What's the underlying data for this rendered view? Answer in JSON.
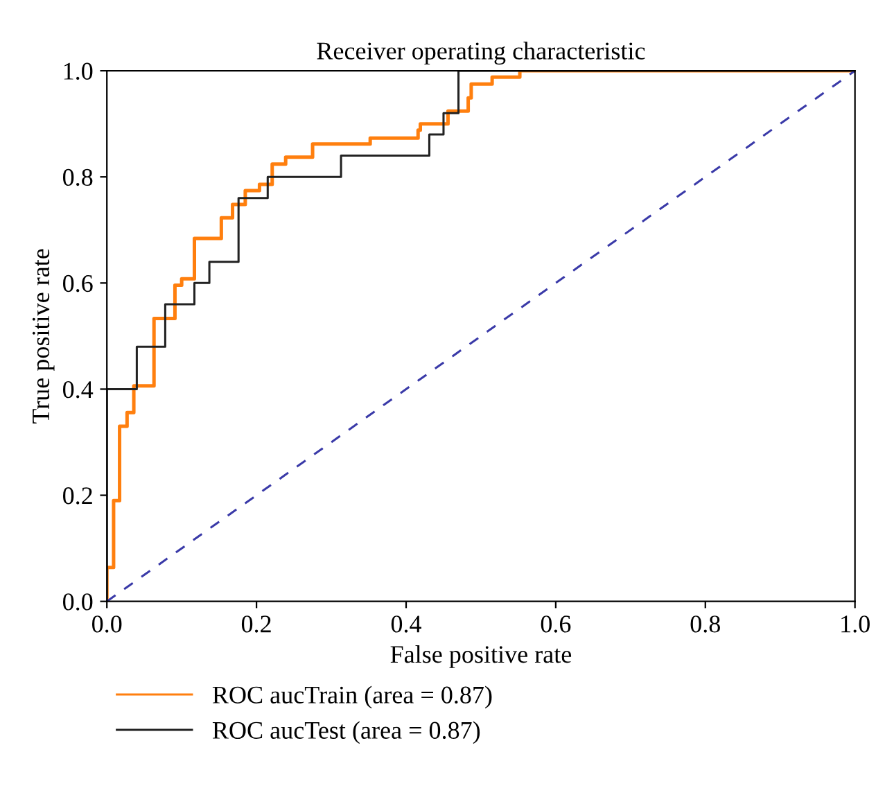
{
  "chart_data": {
    "type": "line",
    "title": "Receiver operating characteristic",
    "xlabel": "False positive rate",
    "ylabel": "True positive rate",
    "series": [
      {
        "name": "ROC aucTrain (area = 0.87)",
        "color": "#ff7f0e",
        "x": [
          0,
          0,
          0.009,
          0.009,
          0.017,
          0.017,
          0.027,
          0.027,
          0.036,
          0.036,
          0.063,
          0.063,
          0.091,
          0.091,
          0.1,
          0.1,
          0.117,
          0.117,
          0.153,
          0.153,
          0.168,
          0.168,
          0.185,
          0.185,
          0.204,
          0.204,
          0.221,
          0.221,
          0.239,
          0.239,
          0.275,
          0.275,
          0.352,
          0.352,
          0.416,
          0.416,
          0.419,
          0.419,
          0.456,
          0.456,
          0.483,
          0.483,
          0.487,
          0.487,
          0.515,
          0.515,
          0.552,
          0.552,
          1.0
        ],
        "values": [
          0,
          0.064,
          0.064,
          0.19,
          0.19,
          0.33,
          0.33,
          0.356,
          0.356,
          0.406,
          0.406,
          0.533,
          0.533,
          0.596,
          0.596,
          0.608,
          0.608,
          0.684,
          0.684,
          0.723,
          0.723,
          0.748,
          0.748,
          0.774,
          0.774,
          0.786,
          0.786,
          0.824,
          0.824,
          0.837,
          0.837,
          0.862,
          0.862,
          0.873,
          0.873,
          0.888,
          0.888,
          0.9,
          0.9,
          0.924,
          0.924,
          0.949,
          0.949,
          0.975,
          0.975,
          0.988,
          0.988,
          1.0,
          1.0
        ]
      },
      {
        "name": "ROC aucTest (area = 0.87)",
        "color": "#222222",
        "x": [
          0,
          0,
          0.04,
          0.04,
          0.078,
          0.078,
          0.117,
          0.117,
          0.137,
          0.137,
          0.176,
          0.176,
          0.215,
          0.215,
          0.313,
          0.313,
          0.431,
          0.431,
          0.45,
          0.45,
          0.47,
          0.47,
          1.0
        ],
        "values": [
          0,
          0.4,
          0.4,
          0.48,
          0.48,
          0.56,
          0.56,
          0.6,
          0.6,
          0.64,
          0.64,
          0.76,
          0.76,
          0.8,
          0.8,
          0.84,
          0.84,
          0.88,
          0.88,
          0.92,
          0.92,
          1.0,
          1.0
        ]
      },
      {
        "color": "#3a3aa8",
        "line_style": "dashed",
        "x": [
          0,
          1
        ],
        "values": [
          0,
          1
        ]
      }
    ],
    "xlim": [
      0,
      1
    ],
    "ylim": [
      0,
      1
    ],
    "xticks": [
      {
        "value": 0,
        "label": "0.0"
      },
      {
        "value": 0.2,
        "label": "0.2"
      },
      {
        "value": 0.4,
        "label": "0.4"
      },
      {
        "value": 0.6,
        "label": "0.6"
      },
      {
        "value": 0.8,
        "label": "0.8"
      },
      {
        "value": 1,
        "label": "1.0"
      }
    ],
    "yticks": [
      {
        "value": 0,
        "label": "0.0"
      },
      {
        "value": 0.2,
        "label": "0.2"
      },
      {
        "value": 0.4,
        "label": "0.4"
      },
      {
        "value": 0.6,
        "label": "0.6"
      },
      {
        "value": 0.8,
        "label": "0.8"
      },
      {
        "value": 1,
        "label": "1.0"
      }
    ],
    "grid": false,
    "legend": "bottom left"
  }
}
